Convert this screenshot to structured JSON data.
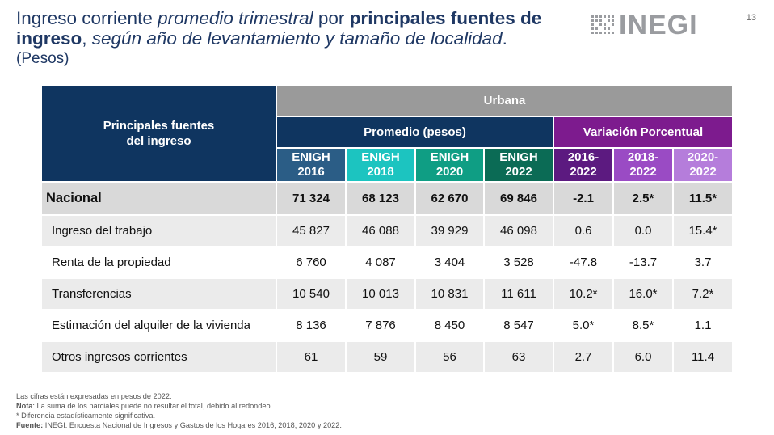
{
  "header": {
    "title_p1": "Ingreso corriente ",
    "title_p2": "promedio trimestral",
    "title_p3": " por ",
    "title_p4": "principales fuentes de ingreso",
    "title_p5": ", ",
    "title_p6": "según año de levantamiento y tamaño de localidad",
    "title_p7": ".",
    "subtitle": "(Pesos)",
    "page_number": "13",
    "logo_text": "INEGI"
  },
  "table": {
    "corner_line1": "Principales fuentes",
    "corner_line2": "del ingreso",
    "group_header": "Urbana",
    "promedio_header": "Promedio (pesos)",
    "variacion_header": "Variación Porcentual",
    "year_headers": [
      {
        "l1": "ENIGH",
        "l2": "2016"
      },
      {
        "l1": "ENIGH",
        "l2": "2018"
      },
      {
        "l1": "ENIGH",
        "l2": "2020"
      },
      {
        "l1": "ENIGH",
        "l2": "2022"
      }
    ],
    "var_headers": [
      {
        "l1": "2016-",
        "l2": "2022"
      },
      {
        "l1": "2018-",
        "l2": "2022"
      },
      {
        "l1": "2020-",
        "l2": "2022"
      }
    ],
    "rows": [
      {
        "label": "Nacional",
        "values": [
          "71 324",
          "68 123",
          "62 670",
          "69 846",
          "-2.1",
          "2.5*",
          "11.5*"
        ]
      },
      {
        "label": "Ingreso del trabajo",
        "values": [
          "45 827",
          "46 088",
          "39 929",
          "46 098",
          "0.6",
          "0.0",
          "15.4*"
        ]
      },
      {
        "label": "Renta de la propiedad",
        "values": [
          "6 760",
          "4 087",
          "3 404",
          "3 528",
          "-47.8",
          "-13.7",
          "3.7"
        ]
      },
      {
        "label": "Transferencias",
        "values": [
          "10 540",
          "10 013",
          "10 831",
          "11 611",
          "10.2*",
          "16.0*",
          "7.2*"
        ]
      },
      {
        "label": "Estimación del alquiler de la vivienda",
        "values": [
          "8 136",
          "7 876",
          "8 450",
          "8 547",
          "5.0*",
          "8.5*",
          "1.1"
        ]
      },
      {
        "label": "Otros ingresos corrientes",
        "values": [
          "61",
          "59",
          "56",
          "63",
          "2.7",
          "6.0",
          "11.4"
        ]
      }
    ]
  },
  "notes": {
    "line1": "Las cifras están expresadas en pesos de 2022.",
    "nota_label": "Nota",
    "nota_text": ": La suma de los parciales puede no resultar el total, debido al redondeo.",
    "line3": "* Diferencia estadísticamente significativa.",
    "fuente_label": "Fuente:",
    "fuente_text": " INEGI. Encuesta Nacional de Ingresos y Gastos de los Hogares 2016, 2018, 2020 y 2022."
  },
  "colors": {
    "navy": "#0f3560",
    "purple": "#7d1b8e",
    "gray_header": "#9a9a9a"
  }
}
